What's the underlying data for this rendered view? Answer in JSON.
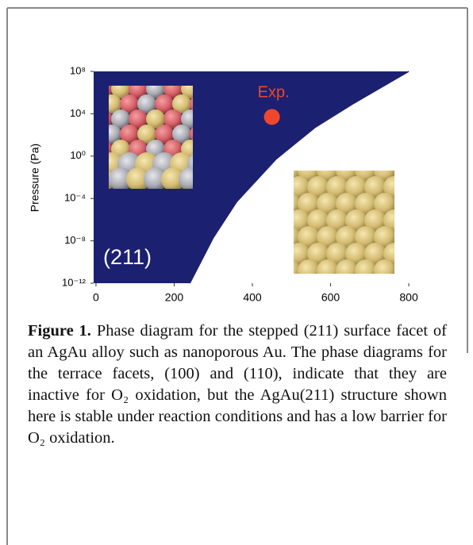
{
  "chart_data": {
    "type": "area",
    "ylabel": "Pressure (Pa)",
    "log_y": true,
    "xlim": [
      -6,
      810
    ],
    "ylim": [
      1e-12,
      100000000
    ],
    "xticks": [
      0,
      200,
      400,
      600,
      800
    ],
    "yticks": [
      {
        "value": 100000000,
        "label": "10⁸"
      },
      {
        "value": 10000,
        "label": "10⁴"
      },
      {
        "value": 1,
        "label": "10⁰"
      },
      {
        "value": 0.0001,
        "label": "10⁻⁴"
      },
      {
        "value": 1e-08,
        "label": "10⁻⁸"
      },
      {
        "value": 1e-12,
        "label": "10⁻¹²"
      }
    ],
    "series": [
      {
        "name": "(211)",
        "color": "#1b2170",
        "x": [
          240,
          300,
          360,
          460,
          560,
          660,
          800
        ],
        "values": [
          1e-12,
          2e-08,
          5e-05,
          0.5,
          500,
          100000,
          100000000
        ]
      }
    ],
    "points": [
      {
        "name": "Exp.",
        "color": "#f0472b",
        "x": 450,
        "y": 5000
      }
    ]
  },
  "caption": {
    "label": "Figure 1.",
    "text": "Phase diagram for the stepped (211) surface facet of an AgAu alloy such as nanoporous Au. The phase diagrams for the terrace facets, (100) and (110), indicate that they are inactive for O₂ oxidation, but the AgAu(211) structure shown here is stable under reaction conditions and has a low barrier for O₂ oxidation."
  }
}
